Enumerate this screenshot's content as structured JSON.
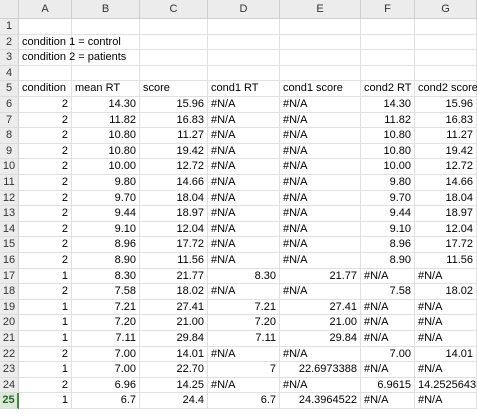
{
  "columns": [
    "A",
    "B",
    "C",
    "D",
    "E",
    "F",
    "G"
  ],
  "active_row": 25,
  "rows": [
    {
      "n": "1",
      "cells": []
    },
    {
      "n": "2",
      "cells": [
        {
          "c": 0,
          "v": "condition 1 = control",
          "t": "txt"
        }
      ]
    },
    {
      "n": "3",
      "cells": [
        {
          "c": 0,
          "v": "condition 2 = patients",
          "t": "txt"
        }
      ]
    },
    {
      "n": "4",
      "cells": []
    },
    {
      "n": "5",
      "cells": [
        {
          "c": 0,
          "v": "condition",
          "t": "txt"
        },
        {
          "c": 1,
          "v": "mean RT",
          "t": "txt"
        },
        {
          "c": 2,
          "v": "score",
          "t": "txt"
        },
        {
          "c": 3,
          "v": "cond1 RT",
          "t": "txt"
        },
        {
          "c": 4,
          "v": "cond1 score",
          "t": "txt"
        },
        {
          "c": 5,
          "v": "cond2 RT",
          "t": "txt"
        },
        {
          "c": 6,
          "v": "cond2 score",
          "t": "txt"
        }
      ]
    },
    {
      "n": "6",
      "cells": [
        {
          "c": 0,
          "v": "2",
          "t": "num"
        },
        {
          "c": 1,
          "v": "14.30",
          "t": "num"
        },
        {
          "c": 2,
          "v": "15.96",
          "t": "num"
        },
        {
          "c": 3,
          "v": "#N/A",
          "t": "txt"
        },
        {
          "c": 4,
          "v": "#N/A",
          "t": "txt"
        },
        {
          "c": 5,
          "v": "14.30",
          "t": "num"
        },
        {
          "c": 6,
          "v": "15.96",
          "t": "num"
        }
      ]
    },
    {
      "n": "7",
      "cells": [
        {
          "c": 0,
          "v": "2",
          "t": "num"
        },
        {
          "c": 1,
          "v": "11.82",
          "t": "num"
        },
        {
          "c": 2,
          "v": "16.83",
          "t": "num"
        },
        {
          "c": 3,
          "v": "#N/A",
          "t": "txt"
        },
        {
          "c": 4,
          "v": "#N/A",
          "t": "txt"
        },
        {
          "c": 5,
          "v": "11.82",
          "t": "num"
        },
        {
          "c": 6,
          "v": "16.83",
          "t": "num"
        }
      ]
    },
    {
      "n": "8",
      "cells": [
        {
          "c": 0,
          "v": "2",
          "t": "num"
        },
        {
          "c": 1,
          "v": "10.80",
          "t": "num"
        },
        {
          "c": 2,
          "v": "11.27",
          "t": "num"
        },
        {
          "c": 3,
          "v": "#N/A",
          "t": "txt"
        },
        {
          "c": 4,
          "v": "#N/A",
          "t": "txt"
        },
        {
          "c": 5,
          "v": "10.80",
          "t": "num"
        },
        {
          "c": 6,
          "v": "11.27",
          "t": "num"
        }
      ]
    },
    {
      "n": "9",
      "cells": [
        {
          "c": 0,
          "v": "2",
          "t": "num"
        },
        {
          "c": 1,
          "v": "10.80",
          "t": "num"
        },
        {
          "c": 2,
          "v": "19.42",
          "t": "num"
        },
        {
          "c": 3,
          "v": "#N/A",
          "t": "txt"
        },
        {
          "c": 4,
          "v": "#N/A",
          "t": "txt"
        },
        {
          "c": 5,
          "v": "10.80",
          "t": "num"
        },
        {
          "c": 6,
          "v": "19.42",
          "t": "num"
        }
      ]
    },
    {
      "n": "10",
      "cells": [
        {
          "c": 0,
          "v": "2",
          "t": "num"
        },
        {
          "c": 1,
          "v": "10.00",
          "t": "num"
        },
        {
          "c": 2,
          "v": "12.72",
          "t": "num"
        },
        {
          "c": 3,
          "v": "#N/A",
          "t": "txt"
        },
        {
          "c": 4,
          "v": "#N/A",
          "t": "txt"
        },
        {
          "c": 5,
          "v": "10.00",
          "t": "num"
        },
        {
          "c": 6,
          "v": "12.72",
          "t": "num"
        }
      ]
    },
    {
      "n": "11",
      "cells": [
        {
          "c": 0,
          "v": "2",
          "t": "num"
        },
        {
          "c": 1,
          "v": "9.80",
          "t": "num"
        },
        {
          "c": 2,
          "v": "14.66",
          "t": "num"
        },
        {
          "c": 3,
          "v": "#N/A",
          "t": "txt"
        },
        {
          "c": 4,
          "v": "#N/A",
          "t": "txt"
        },
        {
          "c": 5,
          "v": "9.80",
          "t": "num"
        },
        {
          "c": 6,
          "v": "14.66",
          "t": "num"
        }
      ]
    },
    {
      "n": "12",
      "cells": [
        {
          "c": 0,
          "v": "2",
          "t": "num"
        },
        {
          "c": 1,
          "v": "9.70",
          "t": "num"
        },
        {
          "c": 2,
          "v": "18.04",
          "t": "num"
        },
        {
          "c": 3,
          "v": "#N/A",
          "t": "txt"
        },
        {
          "c": 4,
          "v": "#N/A",
          "t": "txt"
        },
        {
          "c": 5,
          "v": "9.70",
          "t": "num"
        },
        {
          "c": 6,
          "v": "18.04",
          "t": "num"
        }
      ]
    },
    {
      "n": "13",
      "cells": [
        {
          "c": 0,
          "v": "2",
          "t": "num"
        },
        {
          "c": 1,
          "v": "9.44",
          "t": "num"
        },
        {
          "c": 2,
          "v": "18.97",
          "t": "num"
        },
        {
          "c": 3,
          "v": "#N/A",
          "t": "txt"
        },
        {
          "c": 4,
          "v": "#N/A",
          "t": "txt"
        },
        {
          "c": 5,
          "v": "9.44",
          "t": "num"
        },
        {
          "c": 6,
          "v": "18.97",
          "t": "num"
        }
      ]
    },
    {
      "n": "14",
      "cells": [
        {
          "c": 0,
          "v": "2",
          "t": "num"
        },
        {
          "c": 1,
          "v": "9.10",
          "t": "num"
        },
        {
          "c": 2,
          "v": "12.04",
          "t": "num"
        },
        {
          "c": 3,
          "v": "#N/A",
          "t": "txt"
        },
        {
          "c": 4,
          "v": "#N/A",
          "t": "txt"
        },
        {
          "c": 5,
          "v": "9.10",
          "t": "num"
        },
        {
          "c": 6,
          "v": "12.04",
          "t": "num"
        }
      ]
    },
    {
      "n": "15",
      "cells": [
        {
          "c": 0,
          "v": "2",
          "t": "num"
        },
        {
          "c": 1,
          "v": "8.96",
          "t": "num"
        },
        {
          "c": 2,
          "v": "17.72",
          "t": "num"
        },
        {
          "c": 3,
          "v": "#N/A",
          "t": "txt"
        },
        {
          "c": 4,
          "v": "#N/A",
          "t": "txt"
        },
        {
          "c": 5,
          "v": "8.96",
          "t": "num"
        },
        {
          "c": 6,
          "v": "17.72",
          "t": "num"
        }
      ]
    },
    {
      "n": "16",
      "cells": [
        {
          "c": 0,
          "v": "2",
          "t": "num"
        },
        {
          "c": 1,
          "v": "8.90",
          "t": "num"
        },
        {
          "c": 2,
          "v": "11.56",
          "t": "num"
        },
        {
          "c": 3,
          "v": "#N/A",
          "t": "txt"
        },
        {
          "c": 4,
          "v": "#N/A",
          "t": "txt"
        },
        {
          "c": 5,
          "v": "8.90",
          "t": "num"
        },
        {
          "c": 6,
          "v": "11.56",
          "t": "num"
        }
      ]
    },
    {
      "n": "17",
      "cells": [
        {
          "c": 0,
          "v": "1",
          "t": "num"
        },
        {
          "c": 1,
          "v": "8.30",
          "t": "num"
        },
        {
          "c": 2,
          "v": "21.77",
          "t": "num"
        },
        {
          "c": 3,
          "v": "8.30",
          "t": "num"
        },
        {
          "c": 4,
          "v": "21.77",
          "t": "num"
        },
        {
          "c": 5,
          "v": "#N/A",
          "t": "txt"
        },
        {
          "c": 6,
          "v": "#N/A",
          "t": "txt"
        }
      ]
    },
    {
      "n": "18",
      "cells": [
        {
          "c": 0,
          "v": "2",
          "t": "num"
        },
        {
          "c": 1,
          "v": "7.58",
          "t": "num"
        },
        {
          "c": 2,
          "v": "18.02",
          "t": "num"
        },
        {
          "c": 3,
          "v": "#N/A",
          "t": "txt"
        },
        {
          "c": 4,
          "v": "#N/A",
          "t": "txt"
        },
        {
          "c": 5,
          "v": "7.58",
          "t": "num"
        },
        {
          "c": 6,
          "v": "18.02",
          "t": "num"
        }
      ]
    },
    {
      "n": "19",
      "cells": [
        {
          "c": 0,
          "v": "1",
          "t": "num"
        },
        {
          "c": 1,
          "v": "7.21",
          "t": "num"
        },
        {
          "c": 2,
          "v": "27.41",
          "t": "num"
        },
        {
          "c": 3,
          "v": "7.21",
          "t": "num"
        },
        {
          "c": 4,
          "v": "27.41",
          "t": "num"
        },
        {
          "c": 5,
          "v": "#N/A",
          "t": "txt"
        },
        {
          "c": 6,
          "v": "#N/A",
          "t": "txt"
        }
      ]
    },
    {
      "n": "20",
      "cells": [
        {
          "c": 0,
          "v": "1",
          "t": "num"
        },
        {
          "c": 1,
          "v": "7.20",
          "t": "num"
        },
        {
          "c": 2,
          "v": "21.00",
          "t": "num"
        },
        {
          "c": 3,
          "v": "7.20",
          "t": "num"
        },
        {
          "c": 4,
          "v": "21.00",
          "t": "num"
        },
        {
          "c": 5,
          "v": "#N/A",
          "t": "txt"
        },
        {
          "c": 6,
          "v": "#N/A",
          "t": "txt"
        }
      ]
    },
    {
      "n": "21",
      "cells": [
        {
          "c": 0,
          "v": "1",
          "t": "num"
        },
        {
          "c": 1,
          "v": "7.11",
          "t": "num"
        },
        {
          "c": 2,
          "v": "29.84",
          "t": "num"
        },
        {
          "c": 3,
          "v": "7.11",
          "t": "num"
        },
        {
          "c": 4,
          "v": "29.84",
          "t": "num"
        },
        {
          "c": 5,
          "v": "#N/A",
          "t": "txt"
        },
        {
          "c": 6,
          "v": "#N/A",
          "t": "txt"
        }
      ]
    },
    {
      "n": "22",
      "cells": [
        {
          "c": 0,
          "v": "2",
          "t": "num"
        },
        {
          "c": 1,
          "v": "7.00",
          "t": "num"
        },
        {
          "c": 2,
          "v": "14.01",
          "t": "num"
        },
        {
          "c": 3,
          "v": "#N/A",
          "t": "txt"
        },
        {
          "c": 4,
          "v": "#N/A",
          "t": "txt"
        },
        {
          "c": 5,
          "v": "7.00",
          "t": "num"
        },
        {
          "c": 6,
          "v": "14.01",
          "t": "num"
        }
      ]
    },
    {
      "n": "23",
      "cells": [
        {
          "c": 0,
          "v": "1",
          "t": "num"
        },
        {
          "c": 1,
          "v": "7.00",
          "t": "num"
        },
        {
          "c": 2,
          "v": "22.70",
          "t": "num"
        },
        {
          "c": 3,
          "v": "7",
          "t": "num"
        },
        {
          "c": 4,
          "v": "22.6973388",
          "t": "num"
        },
        {
          "c": 5,
          "v": "#N/A",
          "t": "txt"
        },
        {
          "c": 6,
          "v": "#N/A",
          "t": "txt"
        }
      ]
    },
    {
      "n": "24",
      "cells": [
        {
          "c": 0,
          "v": "2",
          "t": "num"
        },
        {
          "c": 1,
          "v": "6.96",
          "t": "num"
        },
        {
          "c": 2,
          "v": "14.25",
          "t": "num"
        },
        {
          "c": 3,
          "v": "#N/A",
          "t": "txt"
        },
        {
          "c": 4,
          "v": "#N/A",
          "t": "txt"
        },
        {
          "c": 5,
          "v": "6.9615",
          "t": "num"
        },
        {
          "c": 6,
          "v": "14.2525643",
          "t": "num"
        }
      ]
    },
    {
      "n": "25",
      "cells": [
        {
          "c": 0,
          "v": "1",
          "t": "num"
        },
        {
          "c": 1,
          "v": "6.7",
          "t": "num"
        },
        {
          "c": 2,
          "v": "24.4",
          "t": "num"
        },
        {
          "c": 3,
          "v": "6.7",
          "t": "num"
        },
        {
          "c": 4,
          "v": "24.3964522",
          "t": "num"
        },
        {
          "c": 5,
          "v": "#N/A",
          "t": "txt"
        },
        {
          "c": 6,
          "v": "#N/A",
          "t": "txt"
        }
      ]
    }
  ]
}
